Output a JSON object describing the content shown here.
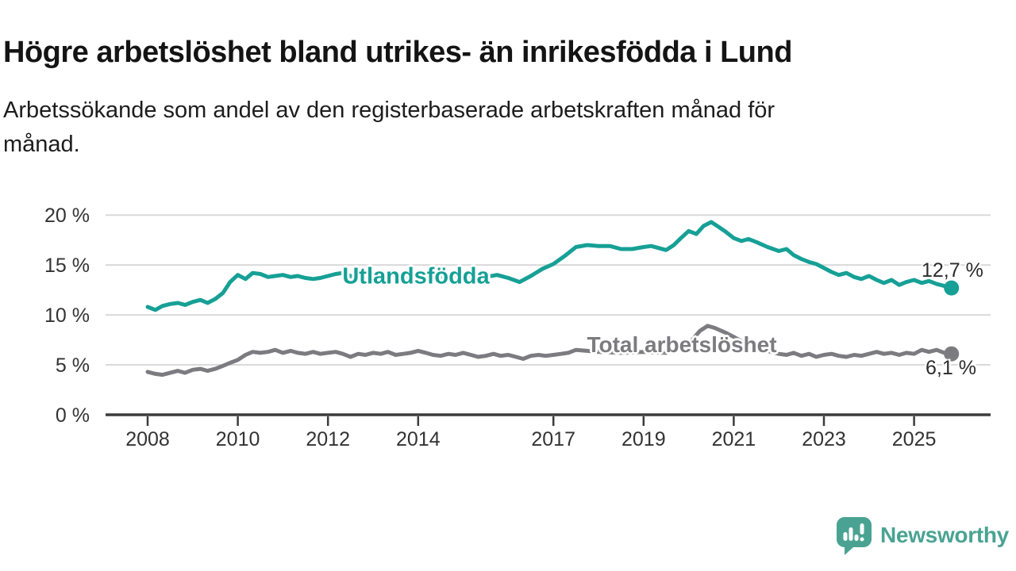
{
  "header": {
    "title": "Högre arbetslöshet bland utrikes- än inrikesfödda i Lund",
    "subtitle_lines": [
      "Arbetssökande som andel av den registerbaserade arbetskraften månad för",
      "månad."
    ]
  },
  "chart_data": {
    "type": "line",
    "title": "Högre arbetslöshet bland utrikes- än inrikesfödda i Lund",
    "subtitle": "Arbetssökande som andel av den registerbaserade arbetskraften månad för månad.",
    "grid": "horizontal-on",
    "legend_position": "inline-labels",
    "x_axis": {
      "min": 2007.1,
      "max": 2026.7,
      "ticks": [
        {
          "value": 2008,
          "label": "2008"
        },
        {
          "value": 2010,
          "label": "2010"
        },
        {
          "value": 2012,
          "label": "2012"
        },
        {
          "value": 2014,
          "label": "2014"
        },
        {
          "value": 2017,
          "label": "2017"
        },
        {
          "value": 2019,
          "label": "2019"
        },
        {
          "value": 2021,
          "label": "2021"
        },
        {
          "value": 2023,
          "label": "2023"
        },
        {
          "value": 2025,
          "label": "2025"
        }
      ]
    },
    "y_axis": {
      "min": 0,
      "max": 20,
      "unit": "%",
      "ticks": [
        {
          "value": 0,
          "label": "0 %"
        },
        {
          "value": 5,
          "label": "5 %"
        },
        {
          "value": 10,
          "label": "10 %"
        },
        {
          "value": 15,
          "label": "15 %"
        },
        {
          "value": 20,
          "label": "20 %"
        }
      ]
    },
    "series": [
      {
        "name": "Utlandsfödda",
        "color": "#16a096",
        "end_label": "12,7 %",
        "end_value": 12.7,
        "points": [
          [
            2008.0,
            10.8
          ],
          [
            2008.17,
            10.5
          ],
          [
            2008.33,
            10.9
          ],
          [
            2008.5,
            11.1
          ],
          [
            2008.67,
            11.2
          ],
          [
            2008.83,
            11.0
          ],
          [
            2009.0,
            11.3
          ],
          [
            2009.17,
            11.5
          ],
          [
            2009.33,
            11.2
          ],
          [
            2009.5,
            11.6
          ],
          [
            2009.67,
            12.2
          ],
          [
            2009.83,
            13.3
          ],
          [
            2010.0,
            14.0
          ],
          [
            2010.17,
            13.6
          ],
          [
            2010.33,
            14.2
          ],
          [
            2010.5,
            14.1
          ],
          [
            2010.67,
            13.8
          ],
          [
            2010.83,
            13.9
          ],
          [
            2011.0,
            14.0
          ],
          [
            2011.17,
            13.8
          ],
          [
            2011.33,
            13.9
          ],
          [
            2011.5,
            13.7
          ],
          [
            2011.67,
            13.6
          ],
          [
            2011.83,
            13.7
          ],
          [
            2012.0,
            13.9
          ],
          [
            2012.17,
            14.1
          ],
          [
            2012.33,
            14.2
          ],
          [
            2012.5,
            13.9
          ],
          [
            2012.67,
            13.6
          ],
          [
            2012.83,
            13.7
          ],
          [
            2013.0,
            13.8
          ],
          [
            2013.25,
            13.7
          ],
          [
            2013.5,
            13.6
          ],
          [
            2013.75,
            13.8
          ],
          [
            2014.0,
            13.9
          ],
          [
            2014.25,
            13.7
          ],
          [
            2014.5,
            13.8
          ],
          [
            2014.75,
            13.9
          ],
          [
            2015.0,
            13.9
          ],
          [
            2015.25,
            13.8
          ],
          [
            2015.5,
            13.8
          ],
          [
            2015.75,
            14.0
          ],
          [
            2016.0,
            13.7
          ],
          [
            2016.25,
            13.3
          ],
          [
            2016.5,
            13.9
          ],
          [
            2016.75,
            14.6
          ],
          [
            2017.0,
            15.1
          ],
          [
            2017.25,
            15.9
          ],
          [
            2017.5,
            16.8
          ],
          [
            2017.75,
            17.0
          ],
          [
            2018.0,
            16.9
          ],
          [
            2018.25,
            16.9
          ],
          [
            2018.5,
            16.6
          ],
          [
            2018.75,
            16.6
          ],
          [
            2019.0,
            16.8
          ],
          [
            2019.17,
            16.9
          ],
          [
            2019.33,
            16.7
          ],
          [
            2019.5,
            16.5
          ],
          [
            2019.67,
            17.0
          ],
          [
            2019.83,
            17.7
          ],
          [
            2020.0,
            18.4
          ],
          [
            2020.17,
            18.1
          ],
          [
            2020.33,
            18.9
          ],
          [
            2020.5,
            19.3
          ],
          [
            2020.67,
            18.8
          ],
          [
            2020.83,
            18.3
          ],
          [
            2021.0,
            17.7
          ],
          [
            2021.17,
            17.4
          ],
          [
            2021.33,
            17.6
          ],
          [
            2021.5,
            17.3
          ],
          [
            2021.75,
            16.8
          ],
          [
            2022.0,
            16.4
          ],
          [
            2022.17,
            16.6
          ],
          [
            2022.33,
            16.0
          ],
          [
            2022.5,
            15.6
          ],
          [
            2022.67,
            15.3
          ],
          [
            2022.83,
            15.1
          ],
          [
            2023.0,
            14.7
          ],
          [
            2023.17,
            14.3
          ],
          [
            2023.33,
            14.0
          ],
          [
            2023.5,
            14.2
          ],
          [
            2023.67,
            13.8
          ],
          [
            2023.83,
            13.6
          ],
          [
            2024.0,
            13.9
          ],
          [
            2024.17,
            13.5
          ],
          [
            2024.33,
            13.2
          ],
          [
            2024.5,
            13.5
          ],
          [
            2024.67,
            13.0
          ],
          [
            2024.83,
            13.3
          ],
          [
            2025.0,
            13.5
          ],
          [
            2025.17,
            13.2
          ],
          [
            2025.33,
            13.4
          ],
          [
            2025.5,
            13.1
          ],
          [
            2025.67,
            12.9
          ],
          [
            2025.83,
            12.7
          ]
        ]
      },
      {
        "name": "Total arbetslöshet",
        "color": "#7b7b80",
        "end_label": "6,1 %",
        "end_value": 6.1,
        "points": [
          [
            2008.0,
            4.3
          ],
          [
            2008.17,
            4.1
          ],
          [
            2008.33,
            4.0
          ],
          [
            2008.5,
            4.2
          ],
          [
            2008.67,
            4.4
          ],
          [
            2008.83,
            4.2
          ],
          [
            2009.0,
            4.5
          ],
          [
            2009.17,
            4.6
          ],
          [
            2009.33,
            4.4
          ],
          [
            2009.5,
            4.6
          ],
          [
            2009.67,
            4.9
          ],
          [
            2009.83,
            5.2
          ],
          [
            2010.0,
            5.5
          ],
          [
            2010.17,
            6.0
          ],
          [
            2010.33,
            6.3
          ],
          [
            2010.5,
            6.2
          ],
          [
            2010.67,
            6.3
          ],
          [
            2010.83,
            6.5
          ],
          [
            2011.0,
            6.2
          ],
          [
            2011.17,
            6.4
          ],
          [
            2011.33,
            6.2
          ],
          [
            2011.5,
            6.1
          ],
          [
            2011.67,
            6.3
          ],
          [
            2011.83,
            6.1
          ],
          [
            2012.0,
            6.2
          ],
          [
            2012.17,
            6.3
          ],
          [
            2012.33,
            6.1
          ],
          [
            2012.5,
            5.8
          ],
          [
            2012.67,
            6.1
          ],
          [
            2012.83,
            6.0
          ],
          [
            2013.0,
            6.2
          ],
          [
            2013.17,
            6.1
          ],
          [
            2013.33,
            6.3
          ],
          [
            2013.5,
            6.0
          ],
          [
            2013.67,
            6.1
          ],
          [
            2013.83,
            6.2
          ],
          [
            2014.0,
            6.4
          ],
          [
            2014.17,
            6.2
          ],
          [
            2014.33,
            6.0
          ],
          [
            2014.5,
            5.9
          ],
          [
            2014.67,
            6.1
          ],
          [
            2014.83,
            6.0
          ],
          [
            2015.0,
            6.2
          ],
          [
            2015.17,
            6.0
          ],
          [
            2015.33,
            5.8
          ],
          [
            2015.5,
            5.9
          ],
          [
            2015.67,
            6.1
          ],
          [
            2015.83,
            5.9
          ],
          [
            2016.0,
            6.0
          ],
          [
            2016.17,
            5.8
          ],
          [
            2016.33,
            5.6
          ],
          [
            2016.5,
            5.9
          ],
          [
            2016.67,
            6.0
          ],
          [
            2016.83,
            5.9
          ],
          [
            2017.0,
            6.0
          ],
          [
            2017.17,
            6.1
          ],
          [
            2017.33,
            6.2
          ],
          [
            2017.5,
            6.5
          ],
          [
            2017.75,
            6.4
          ],
          [
            2018.0,
            6.3
          ],
          [
            2018.5,
            6.2
          ],
          [
            2019.0,
            6.3
          ],
          [
            2019.5,
            6.2
          ],
          [
            2019.83,
            6.6
          ],
          [
            2020.0,
            7.1
          ],
          [
            2020.25,
            8.4
          ],
          [
            2020.42,
            8.9
          ],
          [
            2020.58,
            8.7
          ],
          [
            2020.83,
            8.2
          ],
          [
            2021.0,
            7.8
          ],
          [
            2021.25,
            7.2
          ],
          [
            2021.5,
            6.7
          ],
          [
            2021.75,
            6.4
          ],
          [
            2022.0,
            6.1
          ],
          [
            2022.17,
            6.0
          ],
          [
            2022.33,
            6.2
          ],
          [
            2022.5,
            5.9
          ],
          [
            2022.67,
            6.1
          ],
          [
            2022.83,
            5.8
          ],
          [
            2023.0,
            6.0
          ],
          [
            2023.17,
            6.1
          ],
          [
            2023.33,
            5.9
          ],
          [
            2023.5,
            5.8
          ],
          [
            2023.67,
            6.0
          ],
          [
            2023.83,
            5.9
          ],
          [
            2024.0,
            6.1
          ],
          [
            2024.17,
            6.3
          ],
          [
            2024.33,
            6.1
          ],
          [
            2024.5,
            6.2
          ],
          [
            2024.67,
            6.0
          ],
          [
            2024.83,
            6.2
          ],
          [
            2025.0,
            6.1
          ],
          [
            2025.17,
            6.5
          ],
          [
            2025.33,
            6.3
          ],
          [
            2025.5,
            6.5
          ],
          [
            2025.67,
            6.2
          ],
          [
            2025.83,
            6.1
          ]
        ]
      }
    ],
    "colors": {
      "gridline": "#d9d9d9",
      "axis": "#3b3b3b",
      "tick_text": "#333333",
      "annotation_text": "#2b2b2b"
    }
  },
  "footer": {
    "brand": "Newsworthy",
    "brand_color": "#4aa392"
  }
}
